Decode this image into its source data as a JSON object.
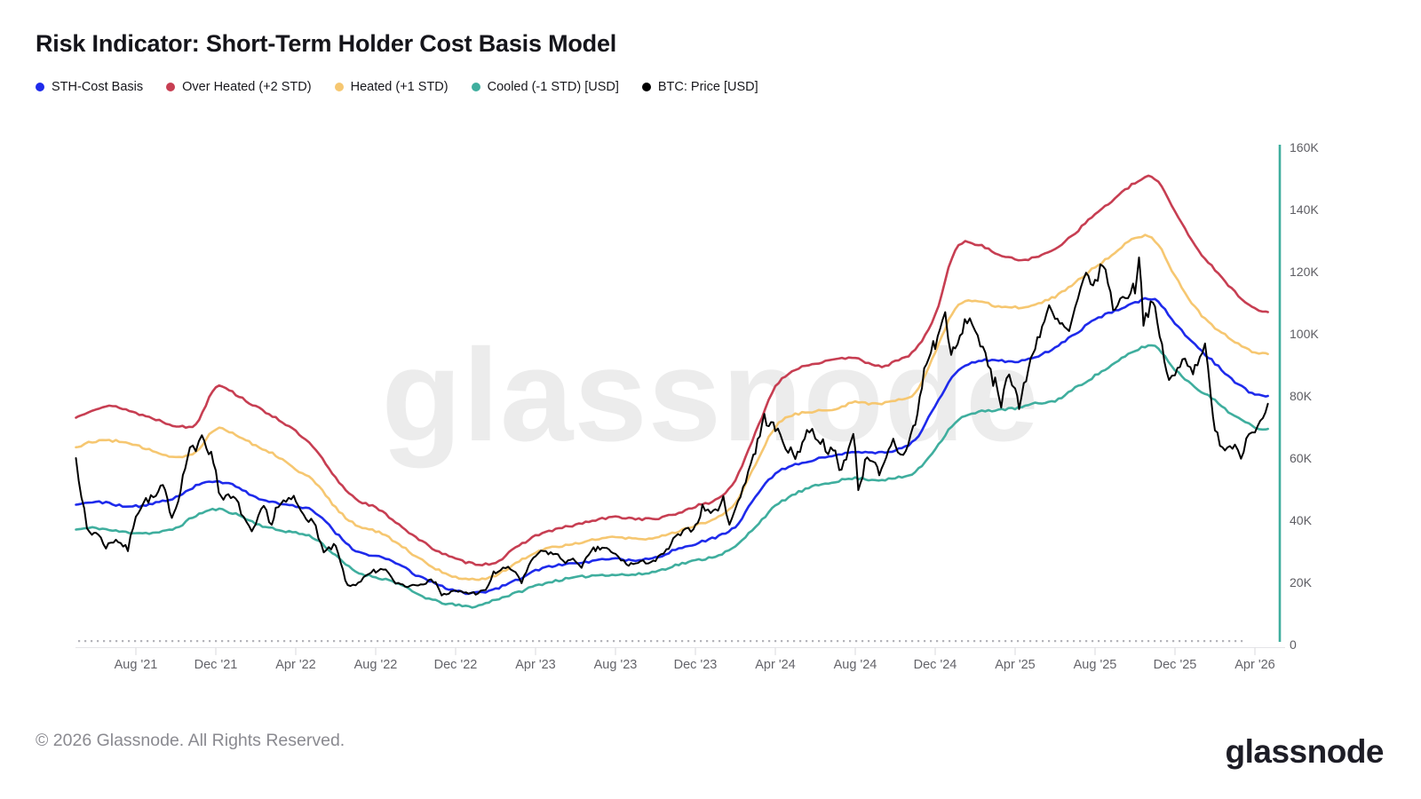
{
  "header": {
    "title": "Risk Indicator: Short-Term Holder Cost Basis Model"
  },
  "legend": {
    "items": [
      {
        "label": "STH-Cost Basis",
        "color": "#1e2aeb"
      },
      {
        "label": "Over Heated (+2 STD)",
        "color": "#c73e52"
      },
      {
        "label": "Heated (+1 STD)",
        "color": "#f6c771"
      },
      {
        "label": "Cooled (-1 STD) [USD]",
        "color": "#3fae9e"
      },
      {
        "label": "BTC: Price [USD]",
        "color": "#000000"
      }
    ]
  },
  "watermark": {
    "text": "glassnode"
  },
  "footer": {
    "copyright": "© 2026 Glassnode. All Rights Reserved.",
    "logo": "glassnode"
  },
  "chart_data": {
    "type": "line",
    "title": "Risk Indicator: Short-Term Holder Cost Basis Model",
    "x_start_month": "2021-05",
    "x_months_span": 60,
    "x_tick_labels": [
      "Aug '21",
      "Dec '21",
      "Apr '22",
      "Aug '22",
      "Dec '22",
      "Apr '23",
      "Aug '23",
      "Dec '23",
      "Apr '24",
      "Aug '24",
      "Dec '24",
      "Apr '25",
      "Aug '25",
      "Dec '25",
      "Apr '26"
    ],
    "y_tick_labels": [
      "0",
      "20K",
      "40K",
      "60K",
      "80K",
      "100K",
      "120K",
      "140K",
      "160K"
    ],
    "y_axis_unit": "USD",
    "ylim_k": [
      0,
      160
    ],
    "axis_color": "#3fae9e",
    "grid": false,
    "legend_position": "top-left",
    "series": [
      {
        "name": "Cooled (-1 STD) [USD]",
        "color": "#3fae9e",
        "kind": "band",
        "monthly_values_k": [
          37,
          37.5,
          36.5,
          36,
          36,
          37.5,
          41.5,
          43.5,
          42,
          39,
          37,
          36,
          34,
          28.5,
          23.5,
          21.7,
          20,
          16.5,
          14,
          12.7,
          12.3,
          14.5,
          16.5,
          18.9,
          20.5,
          21.5,
          22.3,
          22.5,
          22.5,
          23.5,
          25.5,
          27,
          28.5,
          31.5,
          38,
          44.5,
          48.5,
          51,
          52.5,
          53.5,
          53,
          53.5,
          55.5,
          63,
          71.5,
          74.5,
          75.5,
          76,
          77.5,
          78.5,
          82.5,
          86.5,
          90.5,
          94.5,
          96,
          88.5,
          83,
          78.5,
          73.5,
          70
        ],
        "end_value_k": 69.4
      },
      {
        "name": "Heated (+1 STD)",
        "color": "#f6c771",
        "kind": "band",
        "monthly_values_k": [
          63.5,
          65.5,
          65.5,
          64,
          62,
          60.5,
          62,
          69.5,
          67.5,
          64,
          61,
          56.5,
          52,
          44,
          38.5,
          36.5,
          33,
          28.5,
          24.5,
          21.7,
          21,
          22.3,
          26,
          29.8,
          31.5,
          32.5,
          34,
          34.5,
          34,
          34.5,
          36,
          38.5,
          40.5,
          45.5,
          58,
          70,
          74,
          75,
          76,
          78,
          77.5,
          78.5,
          81,
          94,
          108,
          110.5,
          109,
          108.5,
          109.5,
          112,
          116.5,
          121.5,
          126,
          131,
          130,
          118.5,
          108.5,
          102,
          97.5,
          94
        ],
        "end_value_k": 93.5
      },
      {
        "name": "Over Heated (+2 STD)",
        "color": "#c73e52",
        "kind": "band",
        "monthly_values_k": [
          73,
          76,
          76.5,
          74.5,
          72.5,
          70.5,
          71,
          83,
          80.5,
          76.5,
          73,
          68.5,
          62.5,
          53.5,
          47,
          44,
          39.5,
          34.5,
          30.5,
          27.5,
          26,
          26.5,
          31,
          35,
          37,
          38.5,
          40,
          41,
          40.5,
          40.5,
          42,
          44.5,
          46.5,
          53,
          68,
          83,
          88.5,
          90.5,
          91.5,
          92.5,
          89.5,
          91,
          95,
          106,
          127,
          129,
          126,
          124,
          124.5,
          127.5,
          132.5,
          138.5,
          143.5,
          148.5,
          150,
          139.5,
          128.5,
          120.5,
          113.5,
          108
        ],
        "end_value_k": 107
      },
      {
        "name": "STH-Cost Basis",
        "color": "#1e2aeb",
        "kind": "band",
        "monthly_values_k": [
          45,
          46,
          45,
          44.5,
          45.5,
          47.5,
          51,
          52.5,
          51,
          47.5,
          45.5,
          44.5,
          42.5,
          36,
          30,
          28.5,
          26.5,
          22.5,
          19.5,
          17.2,
          16.6,
          18,
          20.5,
          23.7,
          25.5,
          26,
          27,
          27.5,
          27,
          28,
          30.5,
          32.5,
          34.5,
          38,
          47.5,
          55,
          58,
          59.5,
          61,
          62,
          61.5,
          62.5,
          66,
          77,
          87,
          91,
          91.5,
          91,
          92.5,
          95.5,
          100,
          104.5,
          107.5,
          110,
          111,
          103.5,
          96.5,
          90.5,
          84.5,
          80.5
        ],
        "end_value_k": 80
      },
      {
        "name": "BTC: Price [USD]",
        "color": "#000000",
        "kind": "price",
        "points_month_value_k": [
          [
            0,
            60
          ],
          [
            0.55,
            37
          ],
          [
            0.8,
            35.5
          ],
          [
            1,
            36.5
          ],
          [
            1.5,
            31.5
          ],
          [
            2,
            34
          ],
          [
            2.6,
            30.5
          ],
          [
            3,
            42
          ],
          [
            3.5,
            46.5
          ],
          [
            4,
            47.5
          ],
          [
            4.35,
            51
          ],
          [
            4.8,
            41.5
          ],
          [
            5,
            44
          ],
          [
            5.7,
            63.5
          ],
          [
            6,
            61.5
          ],
          [
            6.3,
            68
          ],
          [
            7,
            57
          ],
          [
            7.15,
            48.5
          ],
          [
            7.5,
            47.5
          ],
          [
            8,
            46.5
          ],
          [
            8.8,
            35.5
          ],
          [
            9,
            38.5
          ],
          [
            9.4,
            44.5
          ],
          [
            9.8,
            38.5
          ],
          [
            10,
            43.5
          ],
          [
            10.9,
            47.5
          ],
          [
            11,
            45.5
          ],
          [
            11.9,
            38.5
          ],
          [
            12,
            38
          ],
          [
            12.4,
            29.5
          ],
          [
            12.9,
            31.5
          ],
          [
            13,
            31.5
          ],
          [
            13.6,
            18.5
          ],
          [
            14,
            19.5
          ],
          [
            14.9,
            23.5
          ],
          [
            15,
            23
          ],
          [
            15.5,
            24.5
          ],
          [
            15.9,
            20
          ],
          [
            16,
            20
          ],
          [
            16.6,
            18.8
          ],
          [
            17,
            19.5
          ],
          [
            17.9,
            20.5
          ],
          [
            18,
            20.5
          ],
          [
            18.3,
            15.8
          ],
          [
            18.9,
            17
          ],
          [
            19,
            17
          ],
          [
            19.9,
            16.5
          ],
          [
            20,
            16.6
          ],
          [
            20.5,
            17.2
          ],
          [
            20.9,
            23
          ],
          [
            21,
            23.2
          ],
          [
            21.5,
            24.7
          ],
          [
            22,
            23.5
          ],
          [
            22.3,
            20
          ],
          [
            22.9,
            28
          ],
          [
            23,
            28.5
          ],
          [
            23.4,
            30
          ],
          [
            24,
            29
          ],
          [
            24.5,
            26.8
          ],
          [
            25,
            27
          ],
          [
            25.3,
            25.3
          ],
          [
            25.9,
            30.5
          ],
          [
            26,
            30.5
          ],
          [
            26.45,
            31.3
          ],
          [
            26.9,
            29
          ],
          [
            27,
            29
          ],
          [
            27.55,
            25.8
          ],
          [
            28,
            26
          ],
          [
            28.9,
            27
          ],
          [
            29,
            27
          ],
          [
            29.55,
            30
          ],
          [
            30,
            34.5
          ],
          [
            30.9,
            37.8
          ],
          [
            31,
            38
          ],
          [
            31.35,
            44
          ],
          [
            31.9,
            42.5
          ],
          [
            32,
            43
          ],
          [
            32.4,
            46.5
          ],
          [
            32.7,
            39.5
          ],
          [
            33,
            43
          ],
          [
            33.9,
            61
          ],
          [
            34,
            62.5
          ],
          [
            34.45,
            73
          ],
          [
            34.9,
            70
          ],
          [
            35,
            69.5
          ],
          [
            35.9,
            60.5
          ],
          [
            36,
            60.5
          ],
          [
            36.7,
            69.5
          ],
          [
            37,
            67.5
          ],
          [
            37.9,
            61
          ],
          [
            38,
            62.5
          ],
          [
            38.2,
            55.5
          ],
          [
            38.9,
            66.5
          ],
          [
            39,
            64.5
          ],
          [
            39.15,
            49.5
          ],
          [
            39.6,
            61
          ],
          [
            40,
            59
          ],
          [
            40.2,
            53.5
          ],
          [
            40.9,
            65.5
          ],
          [
            41,
            63.5
          ],
          [
            41.4,
            60.5
          ],
          [
            41.9,
            70
          ],
          [
            42,
            70
          ],
          [
            42.45,
            88
          ],
          [
            42.9,
            96.5
          ],
          [
            43,
            96.5
          ],
          [
            43.5,
            106.5
          ],
          [
            43.8,
            93.5
          ],
          [
            44,
            94.5
          ],
          [
            44.6,
            105
          ],
          [
            45,
            102
          ],
          [
            45.9,
            84.5
          ],
          [
            46,
            86
          ],
          [
            46.3,
            78
          ],
          [
            46.7,
            88
          ],
          [
            47,
            82.5
          ],
          [
            47.2,
            76.5
          ],
          [
            47.9,
            94.5
          ],
          [
            48,
            96.5
          ],
          [
            48.7,
            108
          ],
          [
            49,
            104.5
          ],
          [
            49.7,
            100.5
          ],
          [
            50,
            107.5
          ],
          [
            50.55,
            119
          ],
          [
            50.9,
            116.5
          ],
          [
            51,
            115.5
          ],
          [
            51.4,
            123.5
          ],
          [
            51.9,
            108.5
          ],
          [
            52,
            109
          ],
          [
            52.9,
            114.5
          ],
          [
            53,
            114.5
          ],
          [
            53.2,
            125.5
          ],
          [
            53.42,
            104.5
          ],
          [
            53.9,
            110
          ],
          [
            54,
            107
          ],
          [
            54.7,
            84.5
          ],
          [
            55,
            86.5
          ],
          [
            55.5,
            93
          ],
          [
            55.9,
            88
          ],
          [
            56,
            89
          ],
          [
            56.5,
            97.5
          ],
          [
            56.8,
            78
          ],
          [
            57,
            68
          ],
          [
            57.5,
            63.5
          ],
          [
            58,
            64.5
          ],
          [
            58.3,
            61.5
          ],
          [
            58.7,
            68
          ],
          [
            59,
            70
          ],
          [
            59.4,
            71.5
          ],
          [
            59.65,
            77.5
          ]
        ]
      }
    ]
  }
}
